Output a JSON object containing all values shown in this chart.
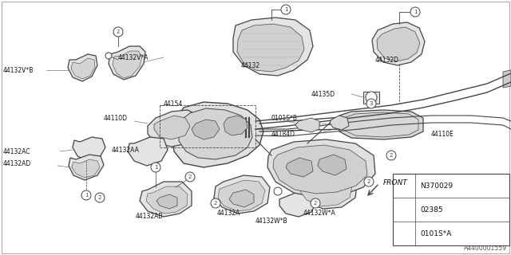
{
  "bg_color": "#ffffff",
  "line_color": "#444444",
  "diagram_number": "A4400001559",
  "legend_items": [
    {
      "num": "1",
      "text": "0101S*A"
    },
    {
      "num": "2",
      "text": "02385"
    },
    {
      "num": "3",
      "text": "N370029"
    }
  ],
  "front_text": "FRONT",
  "label_fontsize": 5.5,
  "legend_fontsize": 6.5
}
